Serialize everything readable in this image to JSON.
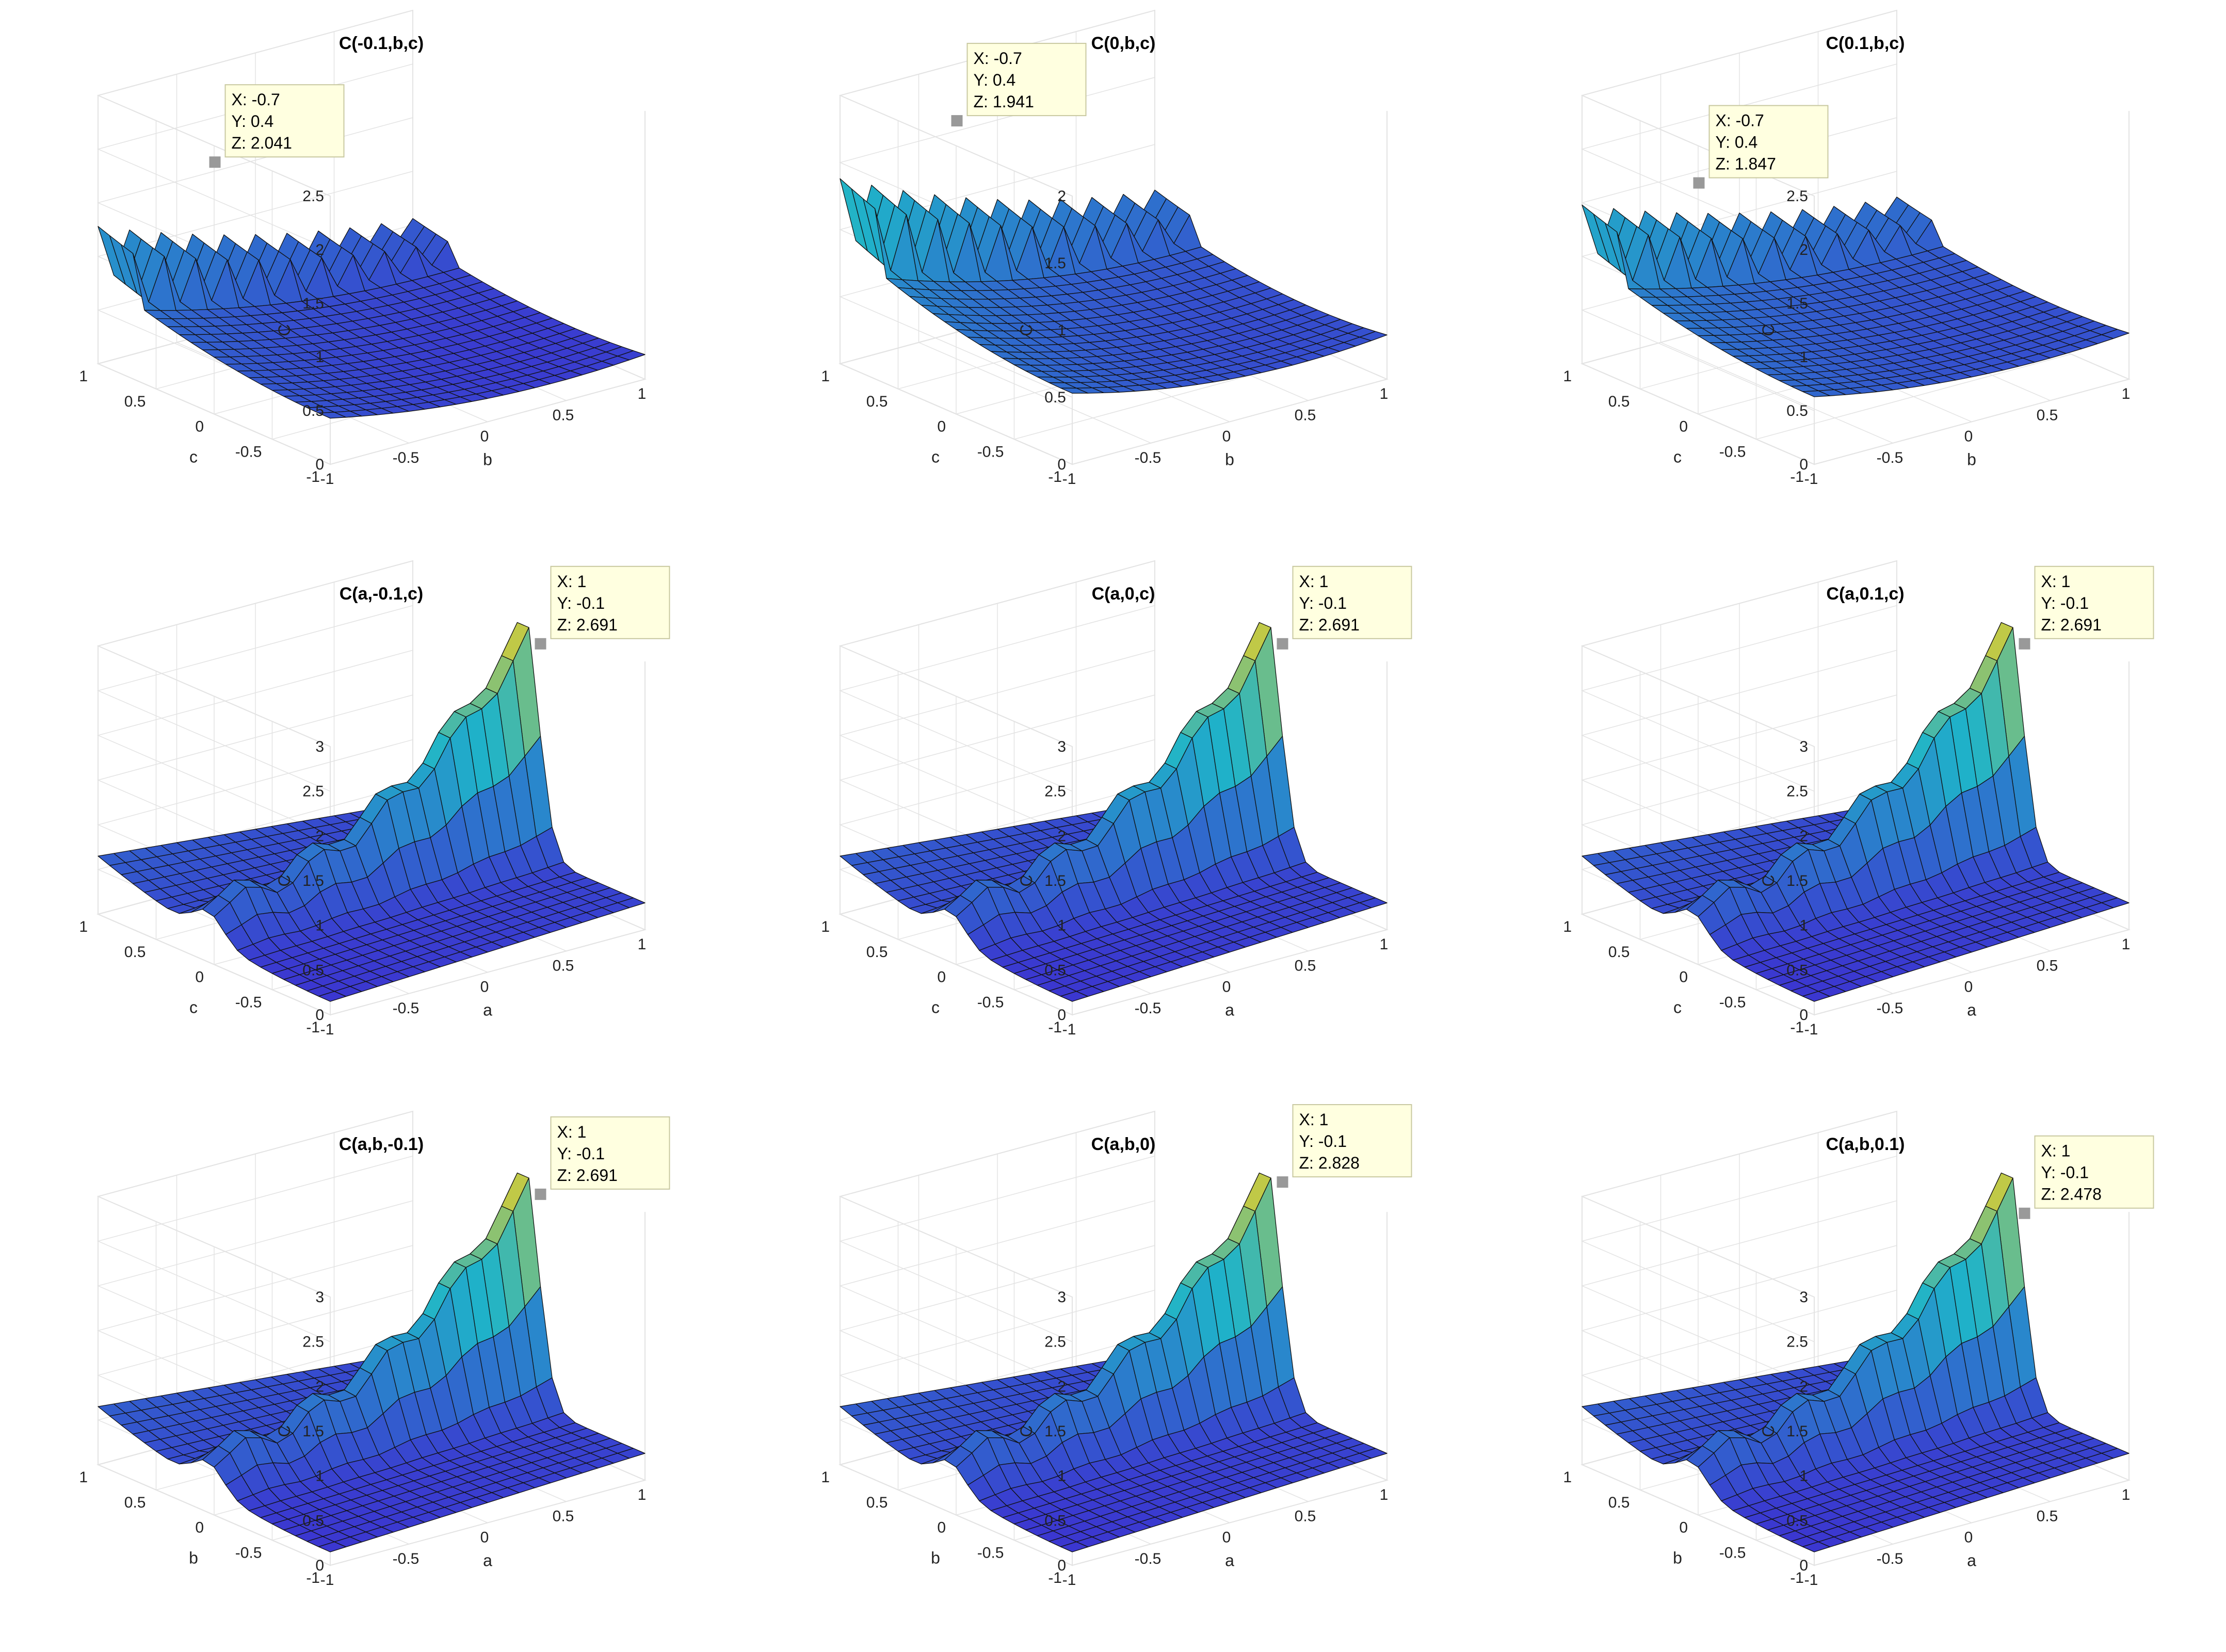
{
  "figure": {
    "title": "3x3 grid of surface plots of C over pairs of a, b, c with the third variable fixed"
  },
  "colors": {
    "low": "#3e2ad1",
    "mid": "#1fb3c9",
    "high": "#f7d11b",
    "edge": "#111111",
    "grid": "#e3e3e3",
    "tip_bg": "#ffffe0",
    "tip_border": "#c8c8a0",
    "marker": "#999999"
  },
  "chart_data": [
    {
      "type": "surface",
      "title": "C(-0.1,b,c)",
      "fixed": "a",
      "fixed_value": -0.1,
      "xlabel": "b",
      "ylabel": "c",
      "zlabel": "C",
      "xlim": [
        -1,
        1
      ],
      "ylim": [
        -1,
        1
      ],
      "zlim": [
        0,
        2.5
      ],
      "zticks": [
        "0",
        "0.5",
        "1",
        "1.5",
        "2",
        "2.5"
      ],
      "xticks": [
        "-1",
        "-0.5",
        "0",
        "0.5",
        "1"
      ],
      "yticks": [
        "-1",
        "-0.5",
        "0",
        "0.5",
        "1"
      ],
      "datatip": {
        "x": -0.7,
        "y": 0.4,
        "z": 2.041,
        "lines": [
          "X: -0.7",
          "Y: 0.4",
          "Z: 2.041"
        ]
      }
    },
    {
      "type": "surface",
      "title": "C(0,b,c)",
      "fixed": "a",
      "fixed_value": 0,
      "xlabel": "b",
      "ylabel": "c",
      "zlabel": "C",
      "xlim": [
        -1,
        1
      ],
      "ylim": [
        -1,
        1
      ],
      "zlim": [
        0,
        2
      ],
      "zticks": [
        "0",
        "0.5",
        "1",
        "1.5",
        "2"
      ],
      "xticks": [
        "-1",
        "-0.5",
        "0",
        "0.5",
        "1"
      ],
      "yticks": [
        "-1",
        "-0.5",
        "0",
        "0.5",
        "1"
      ],
      "datatip": {
        "x": -0.7,
        "y": 0.4,
        "z": 1.941,
        "lines": [
          "X: -0.7",
          "Y: 0.4",
          "Z: 1.941"
        ]
      }
    },
    {
      "type": "surface",
      "title": "C(0.1,b,c)",
      "fixed": "a",
      "fixed_value": 0.1,
      "xlabel": "b",
      "ylabel": "c",
      "zlabel": "C",
      "xlim": [
        -1,
        1
      ],
      "ylim": [
        -1,
        1
      ],
      "zlim": [
        0,
        2.5
      ],
      "zticks": [
        "0",
        "0.5",
        "1",
        "1.5",
        "2",
        "2.5"
      ],
      "xticks": [
        "-1",
        "-0.5",
        "0",
        "0.5",
        "1"
      ],
      "yticks": [
        "-1",
        "-0.5",
        "0",
        "0.5",
        "1"
      ],
      "datatip": {
        "x": -0.7,
        "y": 0.4,
        "z": 1.847,
        "lines": [
          "X: -0.7",
          "Y: 0.4",
          "Z: 1.847"
        ]
      }
    },
    {
      "type": "surface",
      "title": "C(a,-0.1,c)",
      "fixed": "b",
      "fixed_value": -0.1,
      "xlabel": "a",
      "ylabel": "c",
      "zlabel": "C",
      "xlim": [
        -1,
        1
      ],
      "ylim": [
        -1,
        1
      ],
      "zlim": [
        0,
        3
      ],
      "zticks": [
        "0",
        "0.5",
        "1",
        "1.5",
        "2",
        "2.5",
        "3"
      ],
      "xticks": [
        "-1",
        "-0.5",
        "0",
        "0.5",
        "1"
      ],
      "yticks": [
        "-1",
        "-0.5",
        "0",
        "0.5",
        "1"
      ],
      "datatip": {
        "x": 1,
        "y": -0.1,
        "z": 2.691,
        "lines": [
          "X: 1",
          "Y: -0.1",
          "Z: 2.691"
        ]
      }
    },
    {
      "type": "surface",
      "title": "C(a,0,c)",
      "fixed": "b",
      "fixed_value": 0,
      "xlabel": "a",
      "ylabel": "c",
      "zlabel": "C",
      "xlim": [
        -1,
        1
      ],
      "ylim": [
        -1,
        1
      ],
      "zlim": [
        0,
        3
      ],
      "zticks": [
        "0",
        "0.5",
        "1",
        "1.5",
        "2",
        "2.5",
        "3"
      ],
      "xticks": [
        "-1",
        "-0.5",
        "0",
        "0.5",
        "1"
      ],
      "yticks": [
        "-1",
        "-0.5",
        "0",
        "0.5",
        "1"
      ],
      "datatip": {
        "x": 1,
        "y": -0.1,
        "z": 2.691,
        "lines": [
          "X: 1",
          "Y: -0.1",
          "Z: 2.691"
        ]
      }
    },
    {
      "type": "surface",
      "title": "C(a,0.1,c)",
      "fixed": "b",
      "fixed_value": 0.1,
      "xlabel": "a",
      "ylabel": "c",
      "zlabel": "C",
      "xlim": [
        -1,
        1
      ],
      "ylim": [
        -1,
        1
      ],
      "zlim": [
        0,
        3
      ],
      "zticks": [
        "0",
        "0.5",
        "1",
        "1.5",
        "2",
        "2.5",
        "3"
      ],
      "xticks": [
        "-1",
        "-0.5",
        "0",
        "0.5",
        "1"
      ],
      "yticks": [
        "-1",
        "-0.5",
        "0",
        "0.5",
        "1"
      ],
      "datatip": {
        "x": 1,
        "y": -0.1,
        "z": 2.691,
        "lines": [
          "X: 1",
          "Y: -0.1",
          "Z: 2.691"
        ]
      }
    },
    {
      "type": "surface",
      "title": "C(a,b,-0.1)",
      "fixed": "c",
      "fixed_value": -0.1,
      "xlabel": "a",
      "ylabel": "b",
      "zlabel": "C",
      "xlim": [
        -1,
        1
      ],
      "ylim": [
        -1,
        1
      ],
      "zlim": [
        0,
        3
      ],
      "zticks": [
        "0",
        "0.5",
        "1",
        "1.5",
        "2",
        "2.5",
        "3"
      ],
      "xticks": [
        "-1",
        "-0.5",
        "0",
        "0.5",
        "1"
      ],
      "yticks": [
        "-1",
        "-0.5",
        "0",
        "0.5",
        "1"
      ],
      "datatip": {
        "x": 1,
        "y": -0.1,
        "z": 2.691,
        "lines": [
          "X: 1",
          "Y: -0.1",
          "Z: 2.691"
        ]
      }
    },
    {
      "type": "surface",
      "title": "C(a,b,0)",
      "fixed": "c",
      "fixed_value": 0,
      "xlabel": "a",
      "ylabel": "b",
      "zlabel": "C",
      "xlim": [
        -1,
        1
      ],
      "ylim": [
        -1,
        1
      ],
      "zlim": [
        0,
        3
      ],
      "zticks": [
        "0",
        "0.5",
        "1",
        "1.5",
        "2",
        "2.5",
        "3"
      ],
      "xticks": [
        "-1",
        "-0.5",
        "0",
        "0.5",
        "1"
      ],
      "yticks": [
        "-1",
        "-0.5",
        "0",
        "0.5",
        "1"
      ],
      "datatip": {
        "x": 1,
        "y": -0.1,
        "z": 2.828,
        "lines": [
          "X: 1",
          "Y: -0.1",
          "Z: 2.828"
        ]
      }
    },
    {
      "type": "surface",
      "title": "C(a,b,0.1)",
      "fixed": "c",
      "fixed_value": 0.1,
      "xlabel": "a",
      "ylabel": "b",
      "zlabel": "C",
      "xlim": [
        -1,
        1
      ],
      "ylim": [
        -1,
        1
      ],
      "zlim": [
        0,
        3
      ],
      "zticks": [
        "0",
        "0.5",
        "1",
        "1.5",
        "2",
        "2.5",
        "3"
      ],
      "xticks": [
        "-1",
        "-0.5",
        "0",
        "0.5",
        "1"
      ],
      "yticks": [
        "-1",
        "-0.5",
        "0",
        "0.5",
        "1"
      ],
      "datatip": {
        "x": 1,
        "y": -0.1,
        "z": 2.478,
        "lines": [
          "X: 1",
          "Y: -0.1",
          "Z: 2.478"
        ]
      }
    }
  ]
}
